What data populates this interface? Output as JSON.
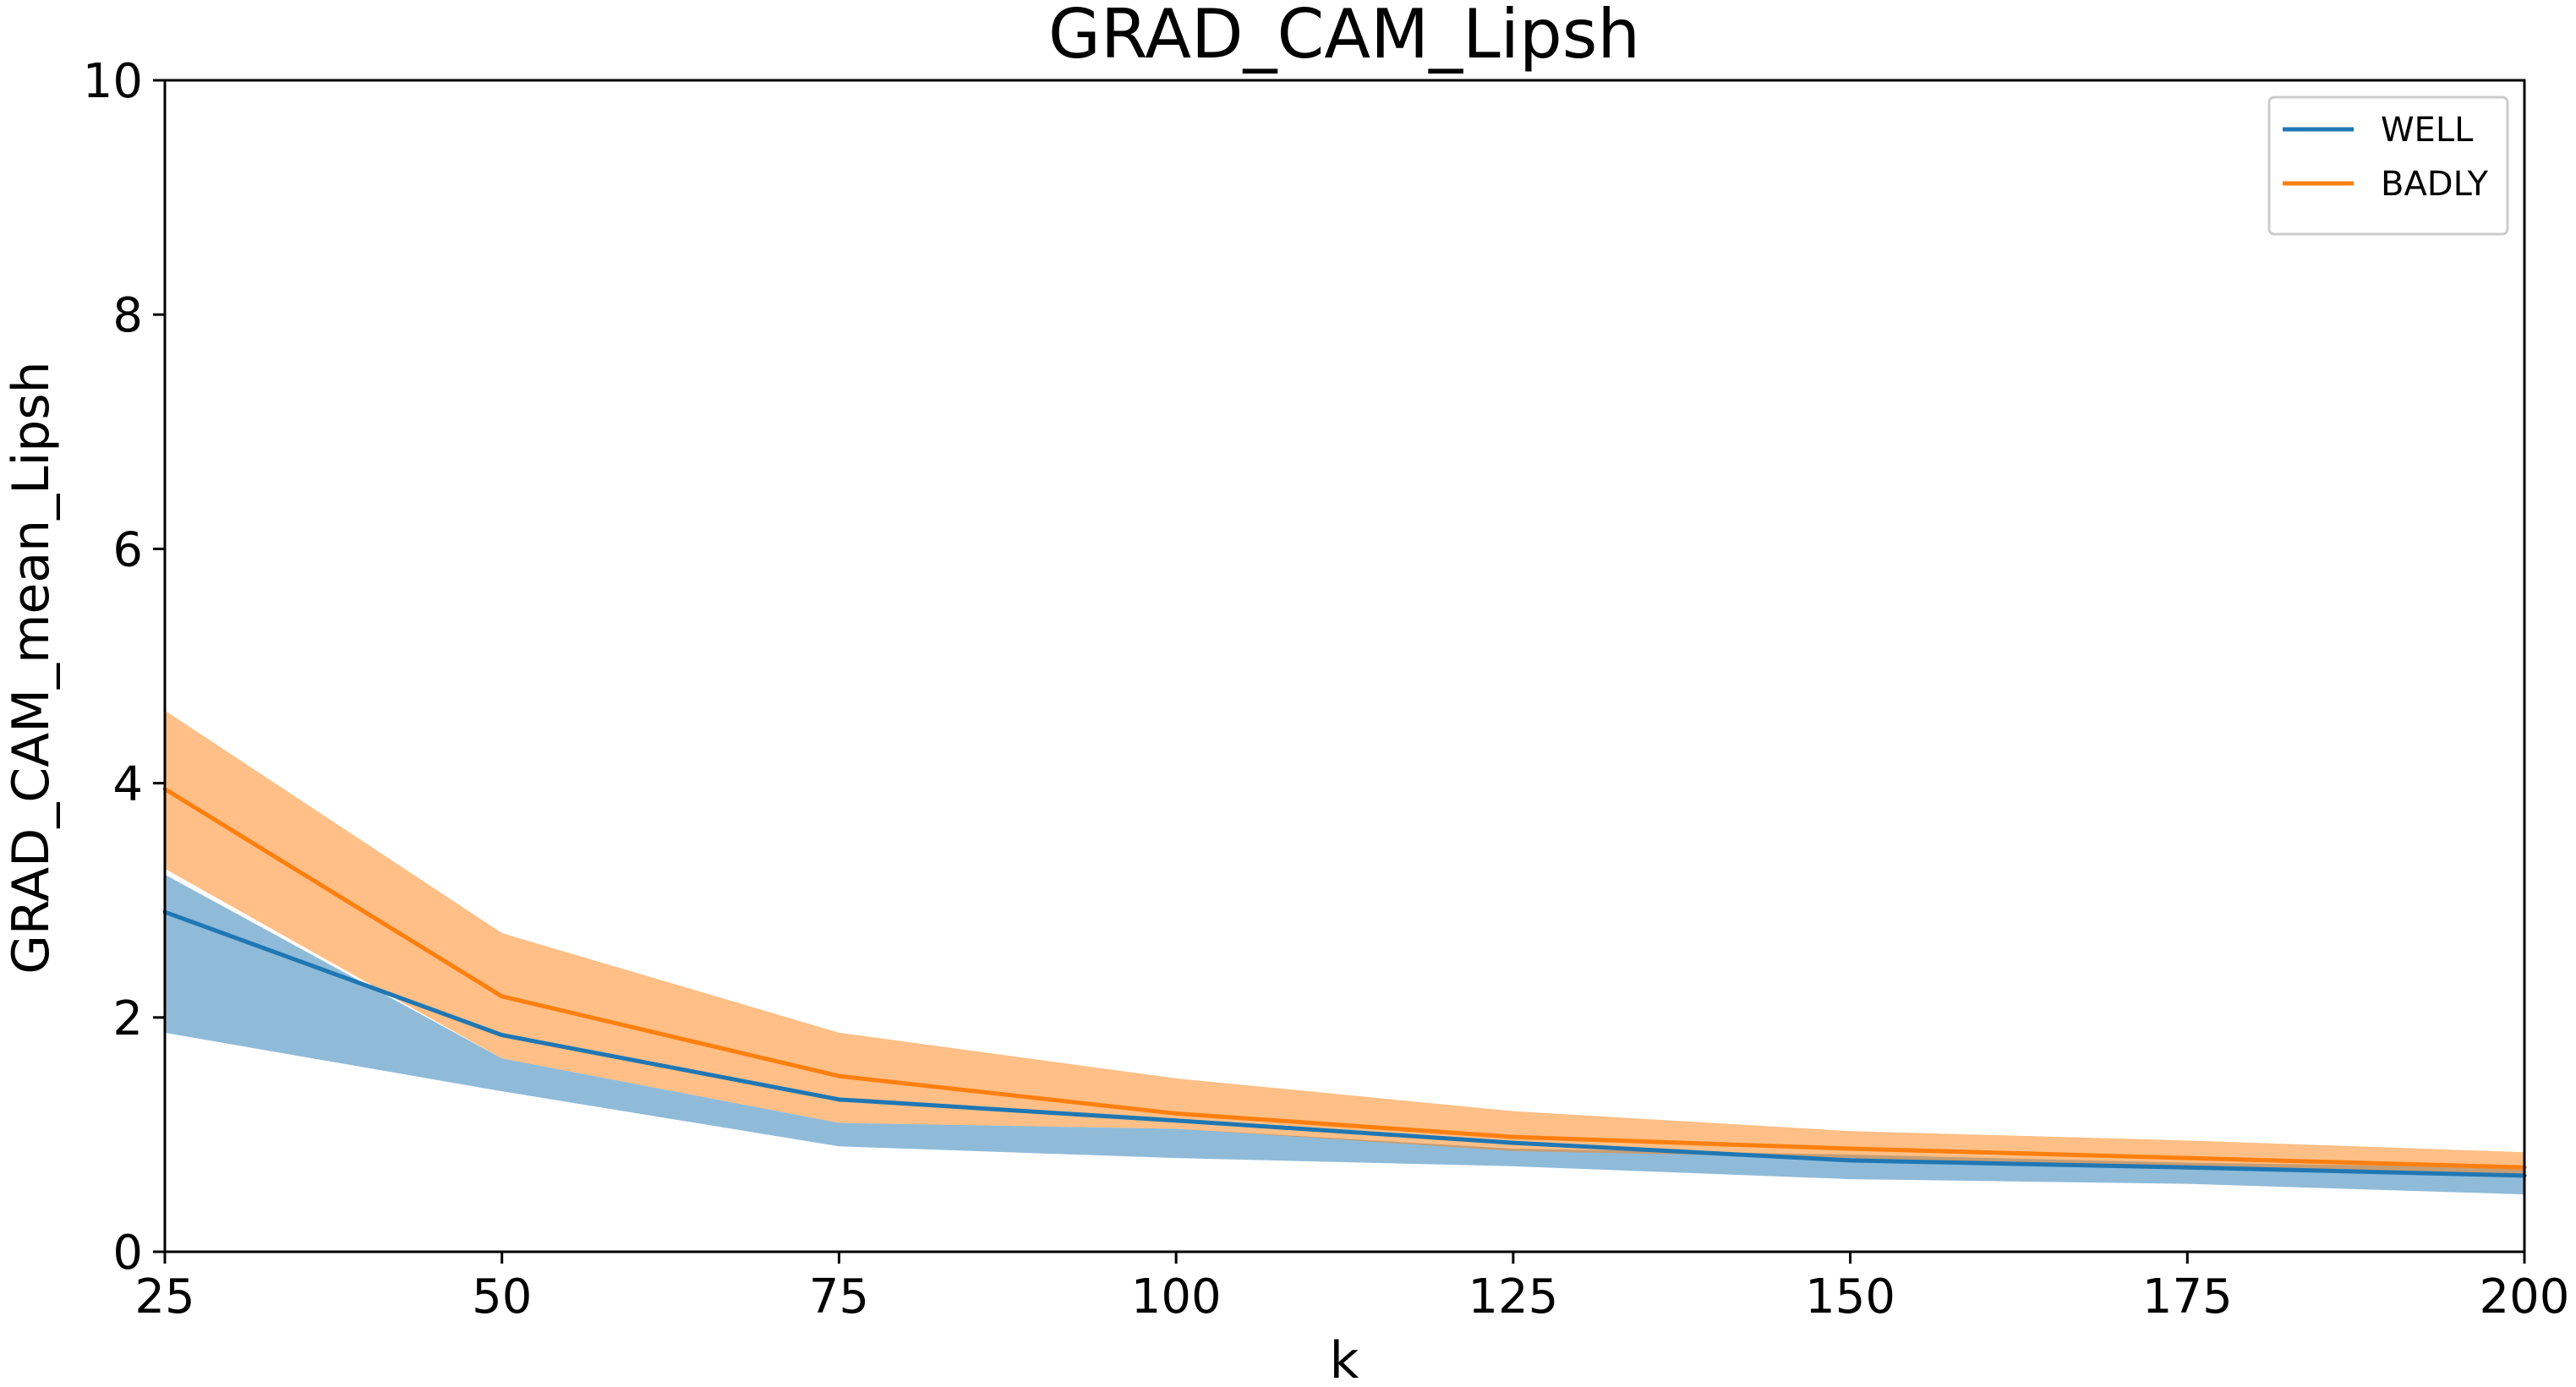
{
  "chart_data": {
    "type": "line",
    "title": "GRAD_CAM_Lipsh",
    "xlabel": "k",
    "ylabel": "GRAD_CAM_mean_Lipsh",
    "x": [
      25,
      50,
      75,
      100,
      125,
      150,
      175,
      200
    ],
    "xlim": [
      25,
      200
    ],
    "ylim": [
      0,
      10
    ],
    "xticks": [
      25,
      50,
      75,
      100,
      125,
      150,
      175,
      200
    ],
    "yticks": [
      0,
      2,
      4,
      6,
      8,
      10
    ],
    "grid": false,
    "legend_position": "top-right",
    "series": [
      {
        "name": "WELL",
        "color": "#1f77b4",
        "band_color": "#1f77b4",
        "values": [
          2.9,
          1.85,
          1.3,
          1.12,
          0.93,
          0.78,
          0.72,
          0.65
        ],
        "lower": [
          1.87,
          1.37,
          0.9,
          0.8,
          0.73,
          0.62,
          0.58,
          0.49
        ],
        "upper": [
          3.22,
          1.65,
          1.1,
          1.05,
          0.88,
          0.83,
          0.76,
          0.72
        ]
      },
      {
        "name": "BADLY",
        "color": "#ff7f0e",
        "band_color": "#ff7f0e",
        "values": [
          3.95,
          2.18,
          1.5,
          1.18,
          0.98,
          0.88,
          0.8,
          0.72
        ],
        "lower": [
          3.27,
          1.65,
          1.1,
          1.05,
          0.86,
          0.8,
          0.72,
          0.65
        ],
        "upper": [
          4.62,
          2.72,
          1.87,
          1.48,
          1.2,
          1.03,
          0.95,
          0.85
        ]
      }
    ]
  }
}
